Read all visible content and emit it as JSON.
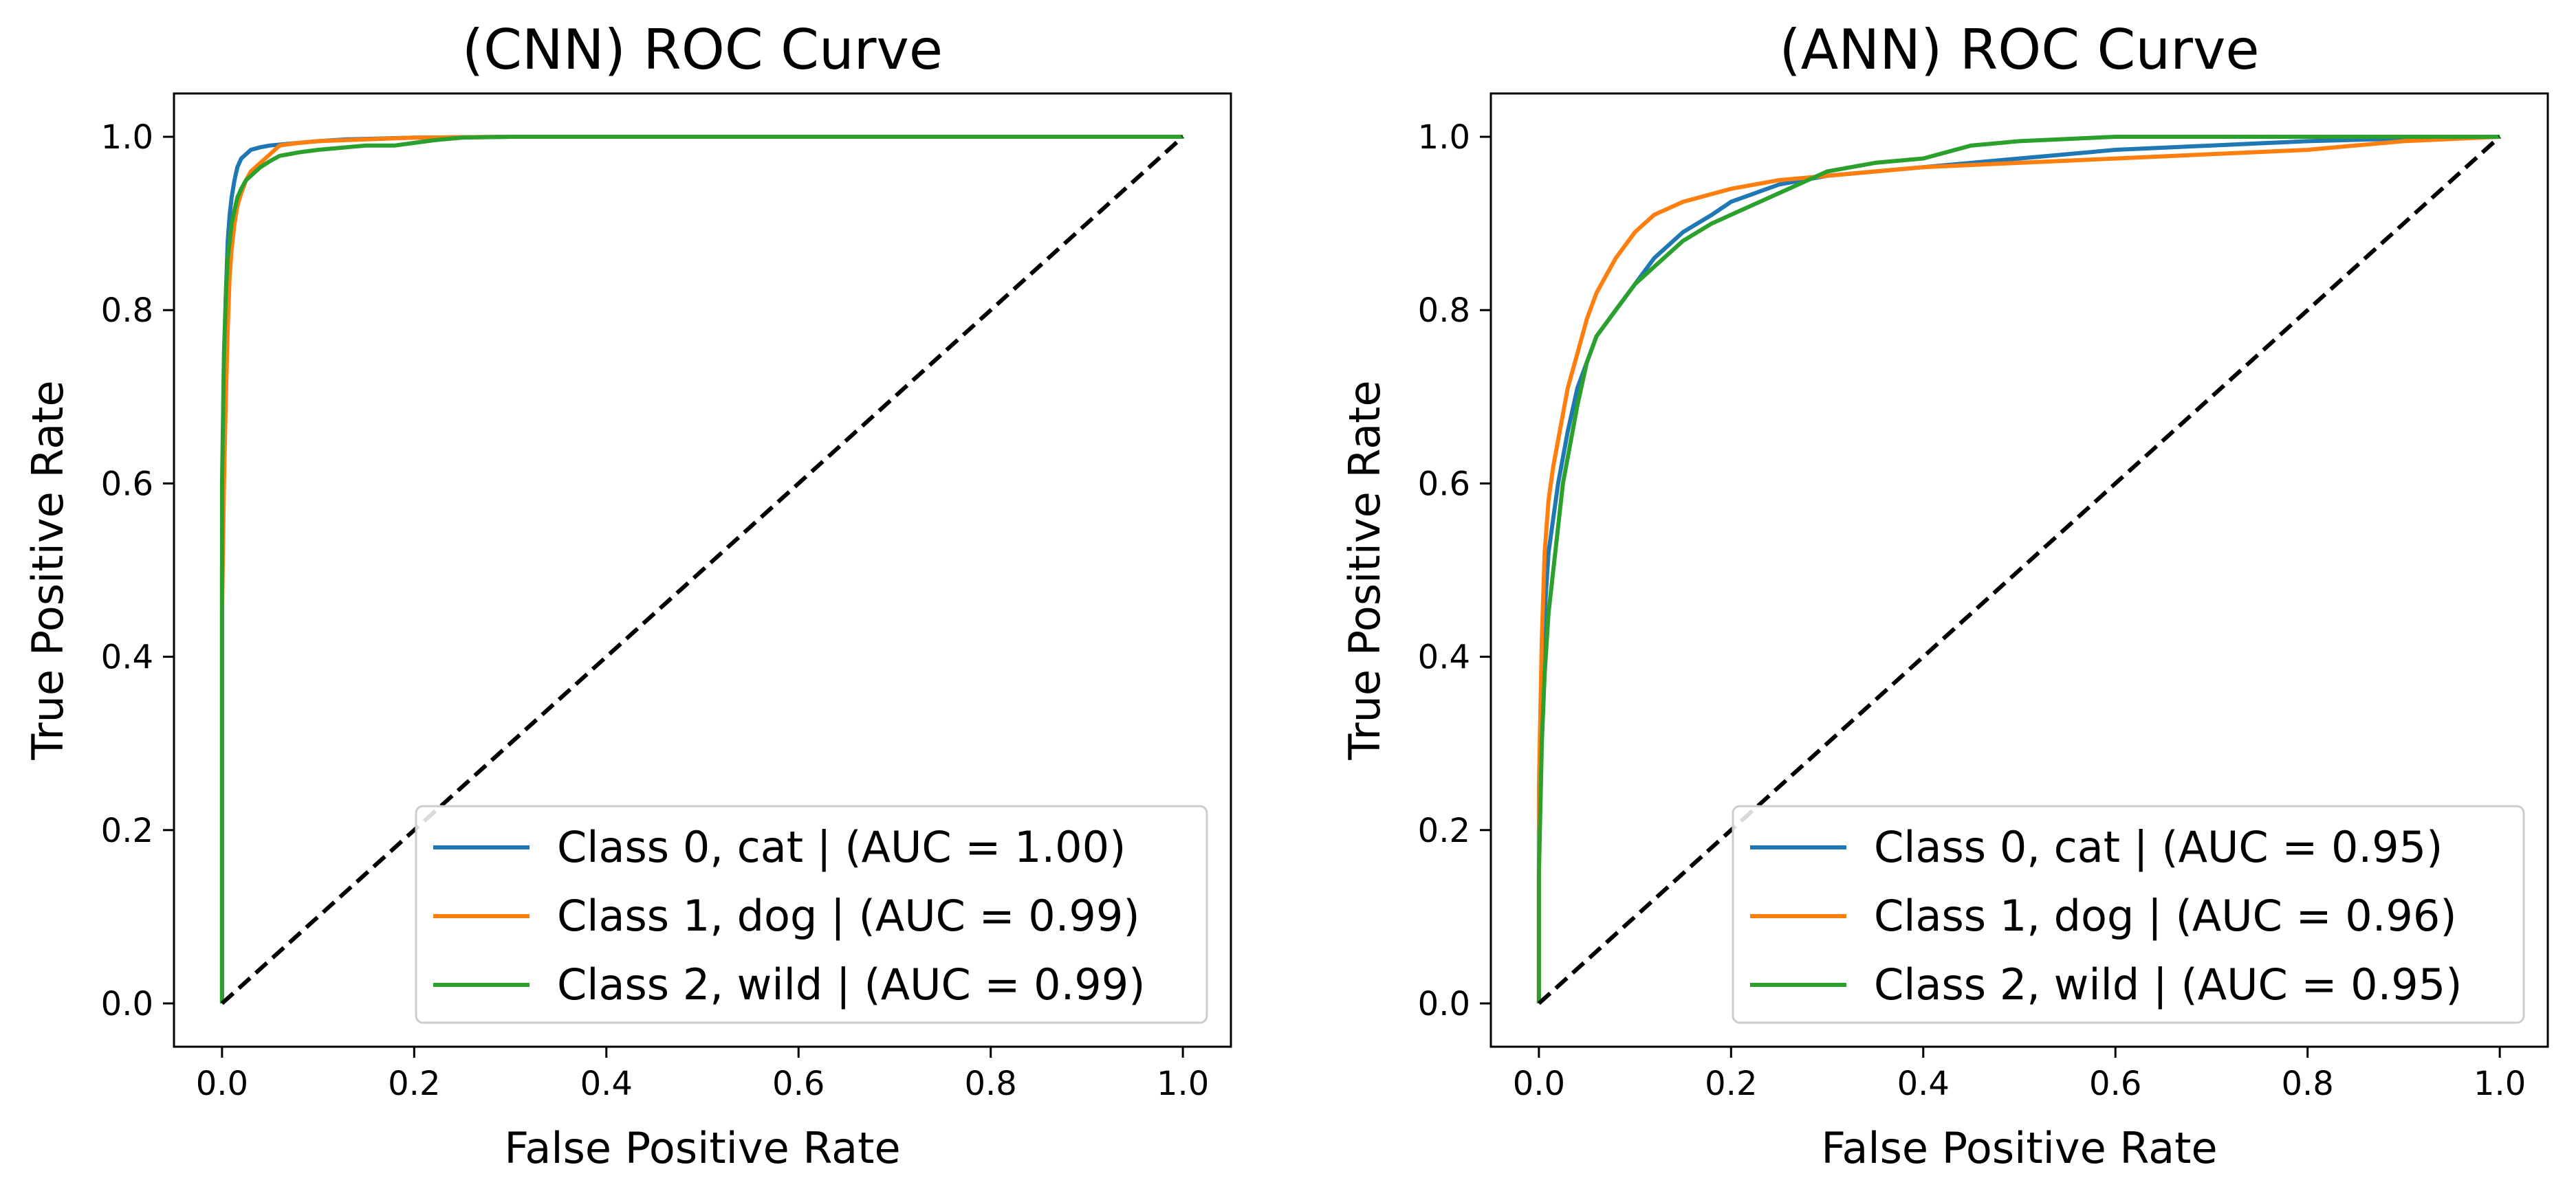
{
  "chart_data": [
    {
      "type": "line",
      "title": "(CNN) ROC Curve",
      "xlabel": "False Positive Rate",
      "ylabel": "True Positive Rate",
      "xlim": [
        -0.05,
        1.05
      ],
      "ylim": [
        -0.05,
        1.05
      ],
      "xticks": [
        "0.0",
        "0.2",
        "0.4",
        "0.6",
        "0.8",
        "1.0"
      ],
      "yticks": [
        "0.0",
        "0.2",
        "0.4",
        "0.6",
        "0.8",
        "1.0"
      ],
      "grid": false,
      "legend_position": "lower right",
      "diagonal": {
        "x": [
          0,
          1
        ],
        "y": [
          0,
          1
        ],
        "color": "#000000",
        "style": "dashed"
      },
      "series": [
        {
          "name": "Class 0, cat | (AUC = 1.00)",
          "color": "#1f77b4",
          "x": [
            0,
            0,
            0.002,
            0.004,
            0.006,
            0.008,
            0.01,
            0.013,
            0.016,
            0.02,
            0.025,
            0.03,
            0.04,
            0.05,
            0.07,
            0.1,
            0.13,
            0.2,
            0.3,
            1.0
          ],
          "y": [
            0,
            0.5,
            0.72,
            0.82,
            0.88,
            0.91,
            0.93,
            0.95,
            0.965,
            0.975,
            0.98,
            0.985,
            0.988,
            0.99,
            0.992,
            0.995,
            0.997,
            0.999,
            1.0,
            1.0
          ]
        },
        {
          "name": "Class 1, dog | (AUC = 0.99)",
          "color": "#ff7f0e",
          "x": [
            0,
            0,
            0.002,
            0.004,
            0.006,
            0.008,
            0.01,
            0.013,
            0.016,
            0.02,
            0.025,
            0.03,
            0.04,
            0.05,
            0.06,
            0.08,
            0.1,
            0.15,
            0.2,
            0.3,
            1.0
          ],
          "y": [
            0,
            0.45,
            0.6,
            0.7,
            0.78,
            0.84,
            0.87,
            0.9,
            0.92,
            0.935,
            0.95,
            0.96,
            0.97,
            0.98,
            0.99,
            0.993,
            0.995,
            0.997,
            0.999,
            1.0,
            1.0
          ]
        },
        {
          "name": "Class 2, wild | (AUC = 0.99)",
          "color": "#2ca02c",
          "x": [
            0,
            0,
            0.002,
            0.004,
            0.006,
            0.008,
            0.01,
            0.013,
            0.016,
            0.02,
            0.025,
            0.03,
            0.04,
            0.05,
            0.06,
            0.08,
            0.1,
            0.13,
            0.15,
            0.18,
            0.2,
            0.22,
            0.25,
            0.3,
            1.0
          ],
          "y": [
            0,
            0.6,
            0.75,
            0.82,
            0.86,
            0.88,
            0.9,
            0.915,
            0.93,
            0.94,
            0.95,
            0.955,
            0.965,
            0.972,
            0.978,
            0.982,
            0.985,
            0.988,
            0.99,
            0.99,
            0.993,
            0.996,
            0.999,
            1.0,
            1.0
          ]
        }
      ]
    },
    {
      "type": "line",
      "title": "(ANN) ROC Curve",
      "xlabel": "False Positive Rate",
      "ylabel": "True Positive Rate",
      "xlim": [
        -0.05,
        1.05
      ],
      "ylim": [
        -0.05,
        1.05
      ],
      "xticks": [
        "0.0",
        "0.2",
        "0.4",
        "0.6",
        "0.8",
        "1.0"
      ],
      "yticks": [
        "0.0",
        "0.2",
        "0.4",
        "0.6",
        "0.8",
        "1.0"
      ],
      "grid": false,
      "legend_position": "lower right",
      "diagonal": {
        "x": [
          0,
          1
        ],
        "y": [
          0,
          1
        ],
        "color": "#000000",
        "style": "dashed"
      },
      "series": [
        {
          "name": "Class 0, cat | (AUC = 0.95)",
          "color": "#1f77b4",
          "x": [
            0,
            0,
            0.003,
            0.006,
            0.01,
            0.015,
            0.02,
            0.025,
            0.03,
            0.04,
            0.05,
            0.06,
            0.08,
            0.1,
            0.12,
            0.15,
            0.18,
            0.2,
            0.25,
            0.3,
            0.35,
            0.4,
            0.5,
            0.6,
            0.7,
            0.8,
            0.9,
            1.0
          ],
          "y": [
            0,
            0.2,
            0.35,
            0.45,
            0.52,
            0.56,
            0.6,
            0.63,
            0.66,
            0.71,
            0.74,
            0.77,
            0.8,
            0.83,
            0.86,
            0.89,
            0.91,
            0.925,
            0.945,
            0.955,
            0.96,
            0.965,
            0.975,
            0.985,
            0.99,
            0.995,
            0.998,
            1.0
          ]
        },
        {
          "name": "Class 1, dog | (AUC = 0.96)",
          "color": "#ff7f0e",
          "x": [
            0,
            0,
            0.003,
            0.006,
            0.01,
            0.015,
            0.02,
            0.025,
            0.03,
            0.04,
            0.05,
            0.06,
            0.08,
            0.1,
            0.12,
            0.15,
            0.2,
            0.25,
            0.3,
            0.35,
            0.4,
            0.5,
            0.6,
            0.7,
            0.8,
            0.9,
            1.0
          ],
          "y": [
            0,
            0.25,
            0.42,
            0.52,
            0.58,
            0.62,
            0.65,
            0.68,
            0.71,
            0.75,
            0.79,
            0.82,
            0.86,
            0.89,
            0.91,
            0.925,
            0.94,
            0.95,
            0.955,
            0.96,
            0.965,
            0.97,
            0.975,
            0.98,
            0.985,
            0.995,
            1.0
          ]
        },
        {
          "name": "Class 2, wild | (AUC = 0.95)",
          "color": "#2ca02c",
          "x": [
            0,
            0,
            0.003,
            0.006,
            0.01,
            0.015,
            0.02,
            0.025,
            0.03,
            0.04,
            0.05,
            0.06,
            0.08,
            0.1,
            0.12,
            0.15,
            0.18,
            0.2,
            0.25,
            0.3,
            0.35,
            0.4,
            0.45,
            0.5,
            0.6,
            0.7,
            0.8,
            0.9,
            1.0
          ],
          "y": [
            0,
            0.15,
            0.3,
            0.38,
            0.45,
            0.5,
            0.55,
            0.6,
            0.63,
            0.69,
            0.74,
            0.77,
            0.8,
            0.83,
            0.85,
            0.88,
            0.9,
            0.91,
            0.935,
            0.96,
            0.97,
            0.975,
            0.99,
            0.995,
            1.0,
            1.0,
            1.0,
            1.0,
            1.0
          ]
        }
      ]
    }
  ]
}
